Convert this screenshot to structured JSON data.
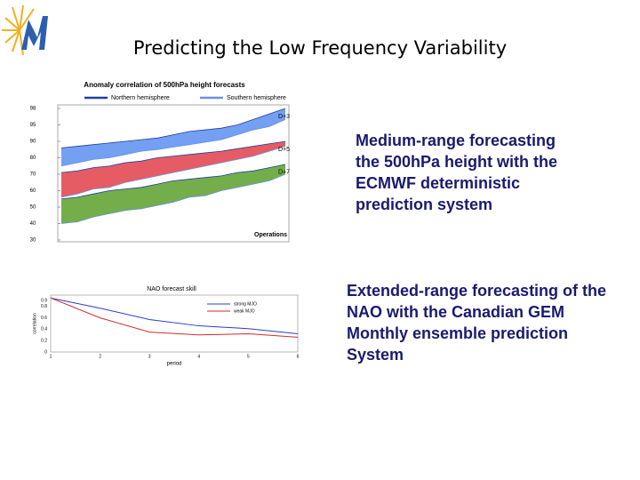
{
  "title": "Predicting the Low Frequency Variability",
  "captions": [
    [
      "Medium-range forecasting",
      "the 500hPa height with the",
      "ECMWF deterministic",
      "prediction system"
    ],
    [
      "Extended-range forecasting of the",
      "NAO with the Canadian GEM",
      "Monthly ensemble prediction",
      "System"
    ]
  ],
  "chart_data": [
    {
      "type": "band",
      "title": "Anomaly correlation of 500hPa height forecasts",
      "legend": [
        {
          "name": "Northern hemisphere",
          "color": "#1f3f9e"
        },
        {
          "name": "Southern hemisphere",
          "color": "#6b8fe6"
        }
      ],
      "categories": [
        null,
        null,
        null,
        null,
        null,
        null,
        null,
        null,
        null,
        null,
        null,
        null,
        null,
        null,
        null
      ],
      "bands": [
        {
          "label": "D+3",
          "color": "#5b8ff0",
          "upper": [
            86,
            87,
            88,
            89,
            90,
            90.5,
            91,
            92,
            93,
            93.5,
            94,
            95,
            96,
            97,
            98
          ],
          "lower": [
            75,
            77,
            79,
            80,
            82,
            84,
            85,
            86.5,
            88,
            89.5,
            90.5,
            92,
            93.5,
            94.5,
            96
          ]
        },
        {
          "label": "D+5",
          "color": "#e2404a",
          "upper": [
            71,
            72,
            74,
            75,
            77,
            78,
            80,
            81,
            82,
            83,
            84,
            85.5,
            87,
            88.5,
            90
          ],
          "lower": [
            56,
            58,
            61,
            62,
            65,
            67,
            69,
            71,
            73,
            75,
            77,
            79,
            81,
            84,
            87
          ]
        },
        {
          "label": "D+7",
          "color": "#5aa02a",
          "upper": [
            55,
            56,
            58,
            60,
            61,
            62,
            64,
            66,
            67,
            68,
            69,
            71,
            72,
            74,
            76
          ],
          "lower": [
            40,
            41,
            44,
            46,
            48,
            49,
            51,
            53,
            56,
            57,
            60,
            62,
            64,
            66,
            70
          ]
        }
      ],
      "annotation": "Operations",
      "ylim": [
        30,
        98
      ],
      "yticks": [
        30,
        40,
        50,
        60,
        70,
        80,
        90,
        95,
        98
      ]
    },
    {
      "type": "line",
      "title": "NAO forecast skill",
      "xlabel": "period",
      "ylabel": "correlation",
      "x": [
        1,
        2,
        3,
        4,
        5,
        6
      ],
      "series": [
        {
          "name": "strong MJO",
          "color": "#2a3ccc",
          "values": [
            0.95,
            0.77,
            0.57,
            0.46,
            0.41,
            0.32
          ]
        },
        {
          "name": "weak MJO",
          "color": "#d22a2a",
          "values": [
            0.95,
            0.6,
            0.35,
            0.3,
            0.32,
            0.26
          ]
        }
      ],
      "xlim": [
        1,
        6
      ],
      "xticks": [
        1,
        2,
        3,
        4,
        5,
        6
      ],
      "ylim": [
        0,
        1
      ],
      "yticks": [
        0,
        0.2,
        0.4,
        0.6,
        0.8,
        0.9
      ]
    }
  ]
}
